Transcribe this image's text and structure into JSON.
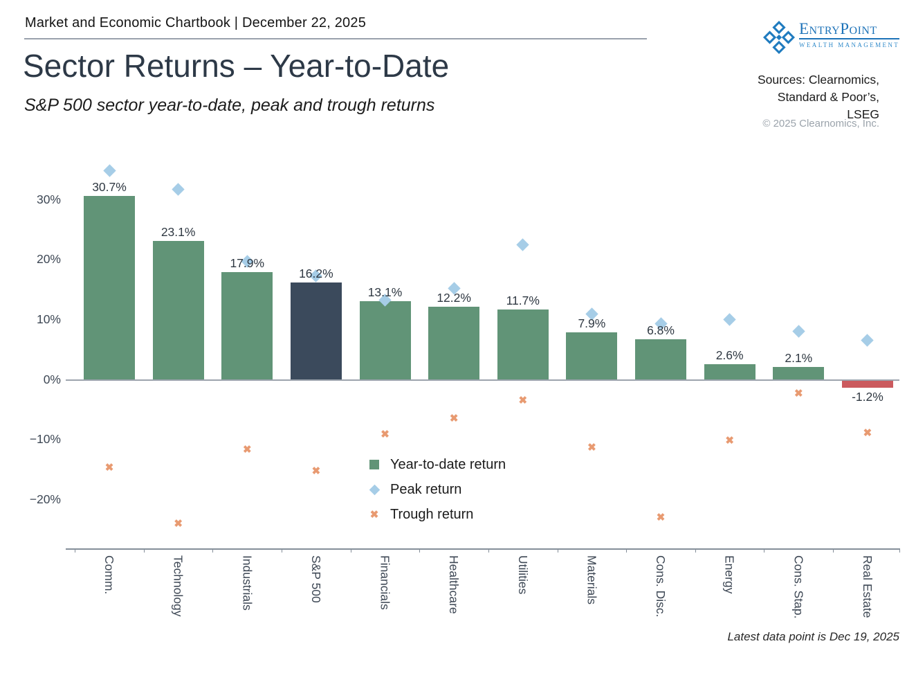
{
  "header": {
    "chartbook_line": "Market and Economic Chartbook | December 22, 2025"
  },
  "title": "Sector Returns – Year-to-Date",
  "subtitle": "S&P 500 sector year-to-date, peak and trough returns",
  "logo": {
    "name": "EntryPoint",
    "tagline": "Wealth Management"
  },
  "sources": {
    "line1": "Sources: Clearnomics,",
    "line2": "Standard & Poor’s,",
    "line3": "LSEG",
    "copyright": "© 2025 Clearnomics, Inc."
  },
  "footnote": "Latest data point is Dec 19, 2025",
  "legend": [
    {
      "label": "Year-to-date return",
      "marker": "square",
      "color": "#619477"
    },
    {
      "label": "Peak return",
      "marker": "diamond",
      "color": "#a6cde7"
    },
    {
      "label": "Trough return",
      "marker": "x",
      "color": "#e89a71"
    }
  ],
  "colors": {
    "bar_green": "#619477",
    "bar_navy": "#3b4a5c",
    "bar_red": "#cb5a5e",
    "peak_diamond": "#a6cde7",
    "trough_x": "#e89a71",
    "axis_line": "#848e99",
    "zero_line": "#9ca3ad",
    "tick_text": "#3d4754",
    "value_text": "#2f3842"
  },
  "chart_data": {
    "type": "bar",
    "title": "Sector Returns – Year-to-Date",
    "subtitle": "S&P 500 sector year-to-date, peak and trough returns",
    "categories": [
      "Comm.",
      "Technology",
      "Industrials",
      "S&P 500",
      "Financials",
      "Healthcare",
      "Utilities",
      "Materials",
      "Cons. Disc.",
      "Energy",
      "Cons. Stap.",
      "Real Estate"
    ],
    "series": [
      {
        "name": "Year-to-date return",
        "marker": "bar",
        "values": [
          30.7,
          23.1,
          17.9,
          16.2,
          13.1,
          12.2,
          11.7,
          7.9,
          6.8,
          2.6,
          2.1,
          -1.2
        ]
      },
      {
        "name": "Peak return",
        "marker": "diamond",
        "values": [
          34.9,
          31.7,
          19.8,
          17.3,
          13.3,
          15.2,
          22.5,
          11.0,
          9.3,
          10.1,
          8.1,
          6.6
        ]
      },
      {
        "name": "Trough return",
        "marker": "x",
        "values": [
          -14.7,
          -24.1,
          -11.7,
          -15.3,
          -9.2,
          -6.5,
          -3.5,
          -11.4,
          -23.0,
          -10.2,
          -2.4,
          -8.9
        ]
      }
    ],
    "bar_labels": [
      "30.7%",
      "23.1%",
      "17.9%",
      "16.2%",
      "13.1%",
      "12.2%",
      "11.7%",
      "7.9%",
      "6.8%",
      "2.6%",
      "2.1%",
      "-1.2%"
    ],
    "bar_colors": [
      "#619477",
      "#619477",
      "#619477",
      "#3b4a5c",
      "#619477",
      "#619477",
      "#619477",
      "#619477",
      "#619477",
      "#619477",
      "#619477",
      "#cb5a5e"
    ],
    "xlabel": "",
    "ylabel": "",
    "ylim": [
      -28,
      37
    ],
    "yticks": [
      {
        "v": 30,
        "label": "30%"
      },
      {
        "v": 20,
        "label": "20%"
      },
      {
        "v": 10,
        "label": "10%"
      },
      {
        "v": 0,
        "label": "0%"
      },
      {
        "v": -10,
        "label": "−10%"
      },
      {
        "v": -20,
        "label": "−20%"
      }
    ],
    "grid": false,
    "legend_position": "inside-lower-center"
  }
}
